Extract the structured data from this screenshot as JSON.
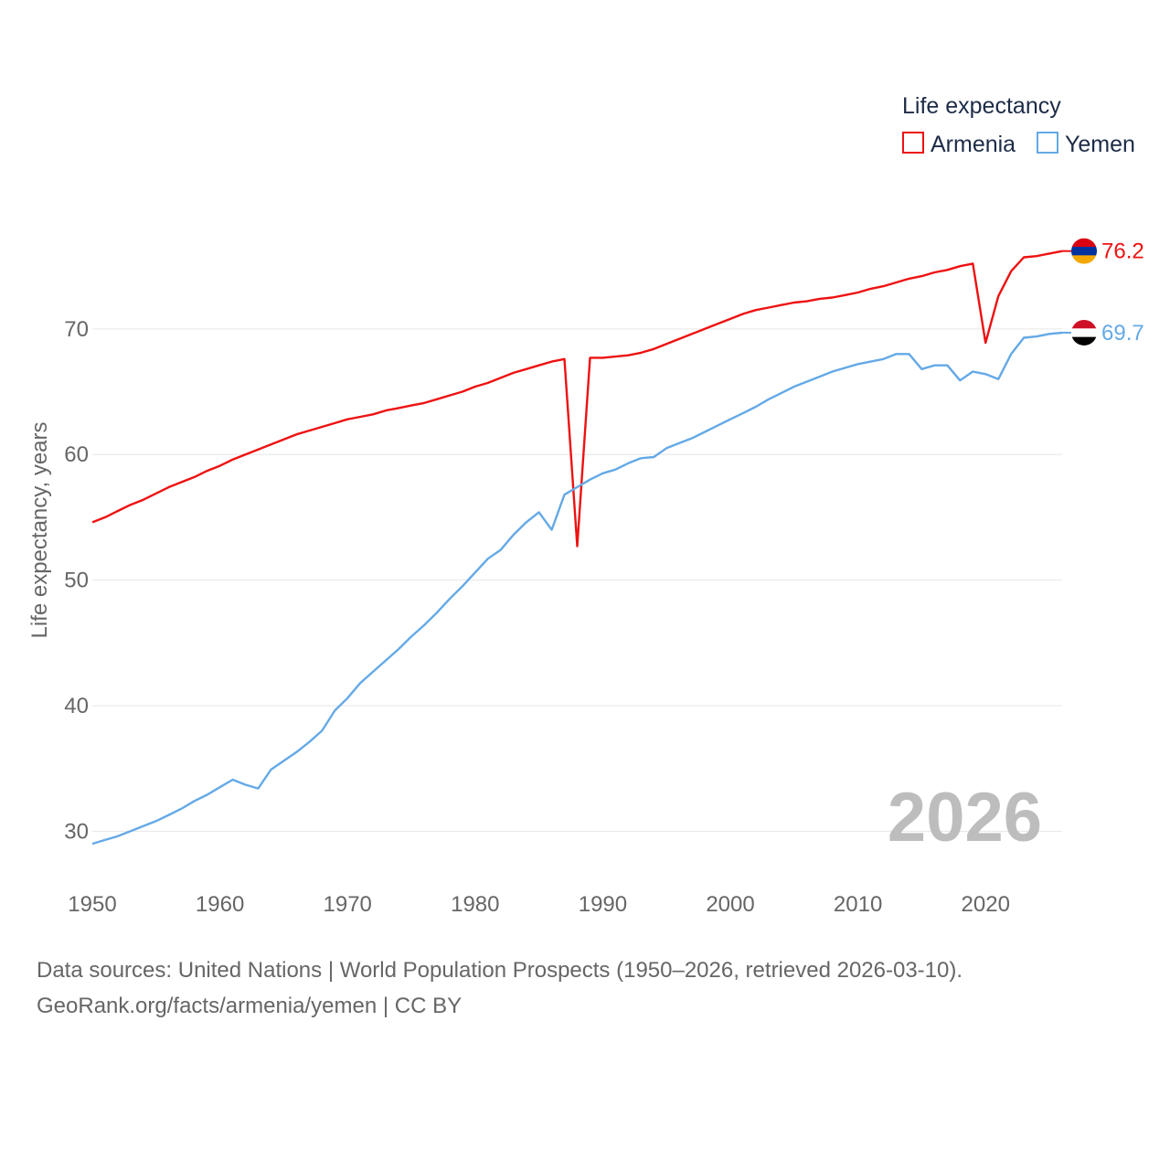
{
  "chart_data": {
    "type": "line",
    "legend_title": "Life expectancy",
    "legend_position": "top-right",
    "ylabel": "Life expectancy, years",
    "xlabel": "",
    "xlim": [
      1950,
      2026
    ],
    "ylim": [
      25,
      82
    ],
    "x_ticks": [
      1950,
      1960,
      1970,
      1980,
      1990,
      2000,
      2010,
      2020
    ],
    "y_ticks": [
      30,
      40,
      50,
      60,
      70
    ],
    "grid": true,
    "year_watermark": "2026",
    "series": [
      {
        "name": "Armenia",
        "color": "#ee1111",
        "end_label": "76.2",
        "flag": "armenia-flag",
        "x": [
          1950,
          1951,
          1952,
          1953,
          1954,
          1955,
          1956,
          1957,
          1958,
          1959,
          1960,
          1961,
          1962,
          1963,
          1964,
          1965,
          1966,
          1967,
          1968,
          1969,
          1970,
          1971,
          1972,
          1973,
          1974,
          1975,
          1976,
          1977,
          1978,
          1979,
          1980,
          1981,
          1982,
          1983,
          1984,
          1985,
          1986,
          1987,
          1988,
          1989,
          1990,
          1991,
          1992,
          1993,
          1994,
          1995,
          1996,
          1997,
          1998,
          1999,
          2000,
          2001,
          2002,
          2003,
          2004,
          2005,
          2006,
          2007,
          2008,
          2009,
          2010,
          2011,
          2012,
          2013,
          2014,
          2015,
          2016,
          2017,
          2018,
          2019,
          2020,
          2021,
          2022,
          2023,
          2024,
          2025,
          2026
        ],
        "values": [
          54.6,
          55.0,
          55.5,
          56.0,
          56.4,
          56.9,
          57.4,
          57.8,
          58.2,
          58.7,
          59.1,
          59.6,
          60.0,
          60.4,
          60.8,
          61.2,
          61.6,
          61.9,
          62.2,
          62.5,
          62.8,
          63.0,
          63.2,
          63.5,
          63.7,
          63.9,
          64.1,
          64.4,
          64.7,
          65.0,
          65.4,
          65.7,
          66.1,
          66.5,
          66.8,
          67.1,
          67.4,
          67.6,
          52.7,
          67.7,
          67.7,
          67.8,
          67.9,
          68.1,
          68.4,
          68.8,
          69.2,
          69.6,
          70.0,
          70.4,
          70.8,
          71.2,
          71.5,
          71.7,
          71.9,
          72.1,
          72.2,
          72.4,
          72.5,
          72.7,
          72.9,
          73.2,
          73.4,
          73.7,
          74.0,
          74.2,
          74.5,
          74.7,
          75.0,
          75.2,
          68.9,
          72.6,
          74.6,
          75.7,
          75.8,
          76.0,
          76.2
        ]
      },
      {
        "name": "Yemen",
        "color": "#64a9e6",
        "end_label": "69.7",
        "flag": "yemen-flag",
        "x": [
          1950,
          1951,
          1952,
          1953,
          1954,
          1955,
          1956,
          1957,
          1958,
          1959,
          1960,
          1961,
          1962,
          1963,
          1964,
          1965,
          1966,
          1967,
          1968,
          1969,
          1970,
          1971,
          1972,
          1973,
          1974,
          1975,
          1976,
          1977,
          1978,
          1979,
          1980,
          1981,
          1982,
          1983,
          1984,
          1985,
          1986,
          1987,
          1988,
          1989,
          1990,
          1991,
          1992,
          1993,
          1994,
          1995,
          1996,
          1997,
          1998,
          1999,
          2000,
          2001,
          2002,
          2003,
          2004,
          2005,
          2006,
          2007,
          2008,
          2009,
          2010,
          2011,
          2012,
          2013,
          2014,
          2015,
          2016,
          2017,
          2018,
          2019,
          2020,
          2021,
          2022,
          2023,
          2024,
          2025,
          2026
        ],
        "values": [
          29.0,
          29.3,
          29.6,
          30.0,
          30.4,
          30.8,
          31.3,
          31.8,
          32.4,
          32.9,
          33.5,
          34.1,
          33.7,
          33.4,
          34.9,
          35.6,
          36.3,
          37.1,
          38.0,
          39.6,
          40.6,
          41.8,
          42.7,
          43.6,
          44.5,
          45.5,
          46.4,
          47.4,
          48.5,
          49.5,
          50.6,
          51.7,
          52.4,
          53.6,
          54.6,
          55.4,
          54.0,
          56.8,
          57.4,
          58.0,
          58.5,
          58.8,
          59.3,
          59.7,
          59.8,
          60.5,
          60.9,
          61.3,
          61.8,
          62.3,
          62.8,
          63.3,
          63.8,
          64.4,
          64.9,
          65.4,
          65.8,
          66.2,
          66.6,
          66.9,
          67.2,
          67.4,
          67.6,
          68.0,
          68.0,
          66.8,
          67.1,
          67.1,
          65.9,
          66.6,
          66.4,
          66.0,
          68.0,
          69.3,
          69.4,
          69.6,
          69.7
        ]
      }
    ]
  },
  "footer": {
    "sources": "Data sources: United Nations | World Population Prospects (1950–2026, retrieved 2026-03-10).",
    "credit": "GeoRank.org/facts/armenia/yemen | CC BY"
  }
}
